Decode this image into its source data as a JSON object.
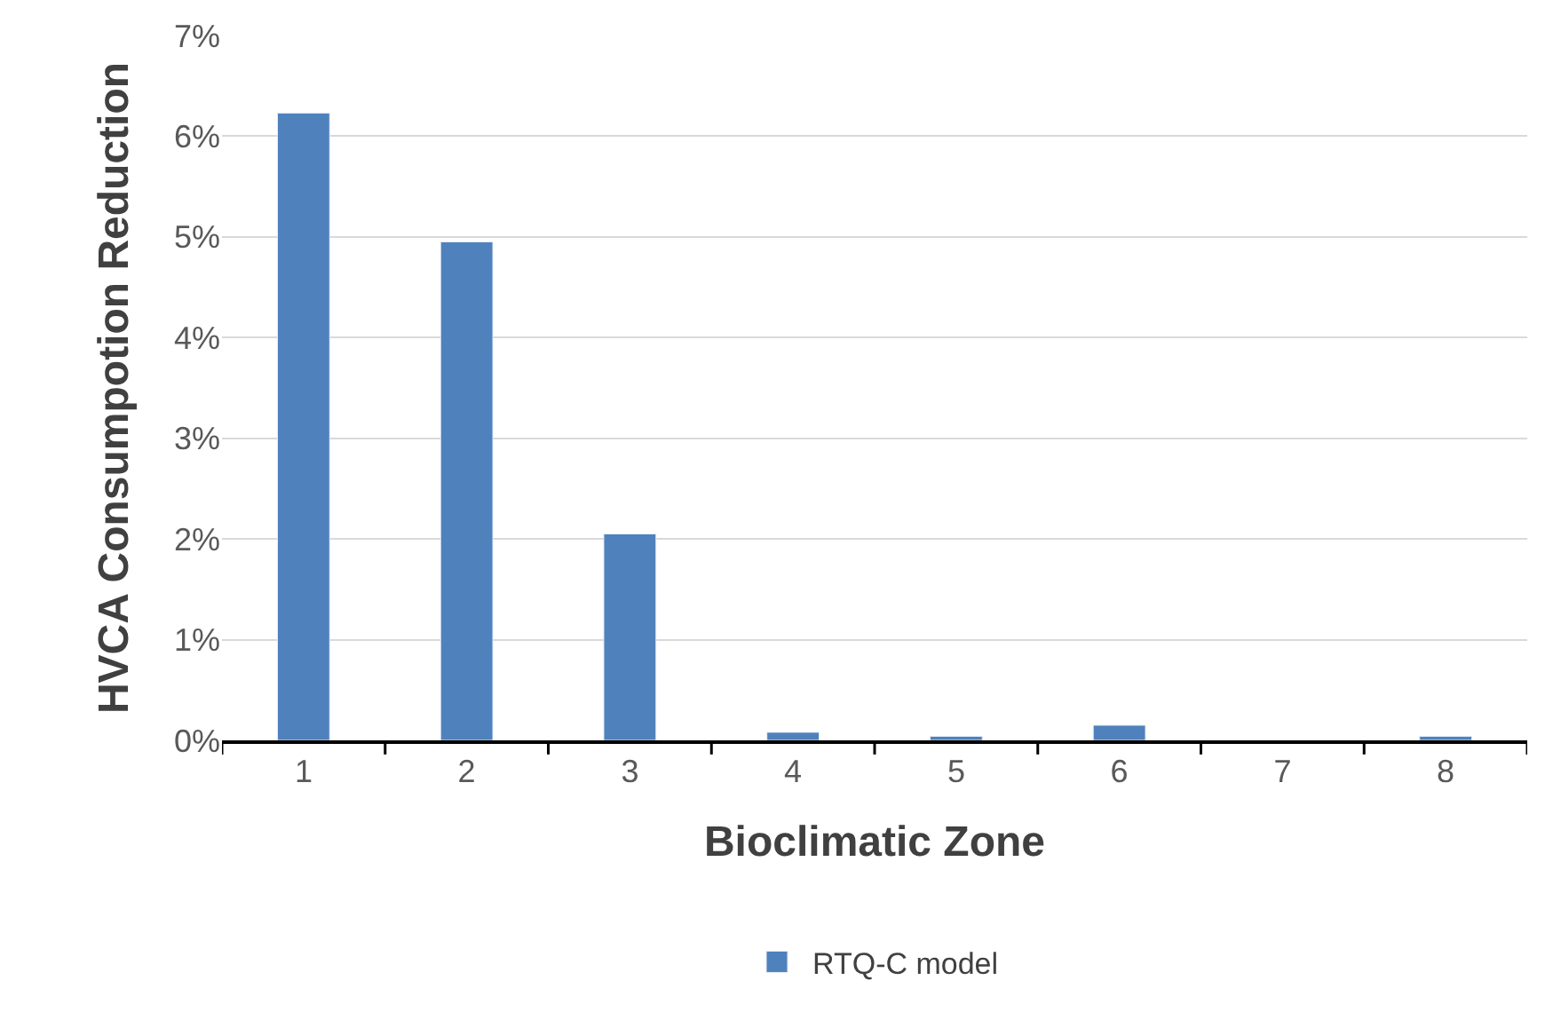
{
  "chart_data": {
    "type": "bar",
    "xlabel": "Bioclimatic Zone",
    "ylabel": "HVCA Consumpotion Reduction",
    "categories": [
      "1",
      "2",
      "3",
      "4",
      "5",
      "6",
      "7",
      "8"
    ],
    "series": [
      {
        "name": "RTQ-C model",
        "color": "#4f81bd",
        "values": [
          6.23,
          4.95,
          2.05,
          0.08,
          0.04,
          0.15,
          null,
          0.04
        ]
      }
    ],
    "ylim": [
      0,
      7
    ],
    "yticks": [
      {
        "value": 0,
        "label": "0%"
      },
      {
        "value": 1,
        "label": "1%"
      },
      {
        "value": 2,
        "label": "2%"
      },
      {
        "value": 3,
        "label": "3%"
      },
      {
        "value": 4,
        "label": "4%"
      },
      {
        "value": 5,
        "label": "5%"
      },
      {
        "value": 6,
        "label": "6%"
      },
      {
        "value": 7,
        "label": "7%"
      }
    ],
    "grid": "y",
    "legend": "bottom"
  }
}
